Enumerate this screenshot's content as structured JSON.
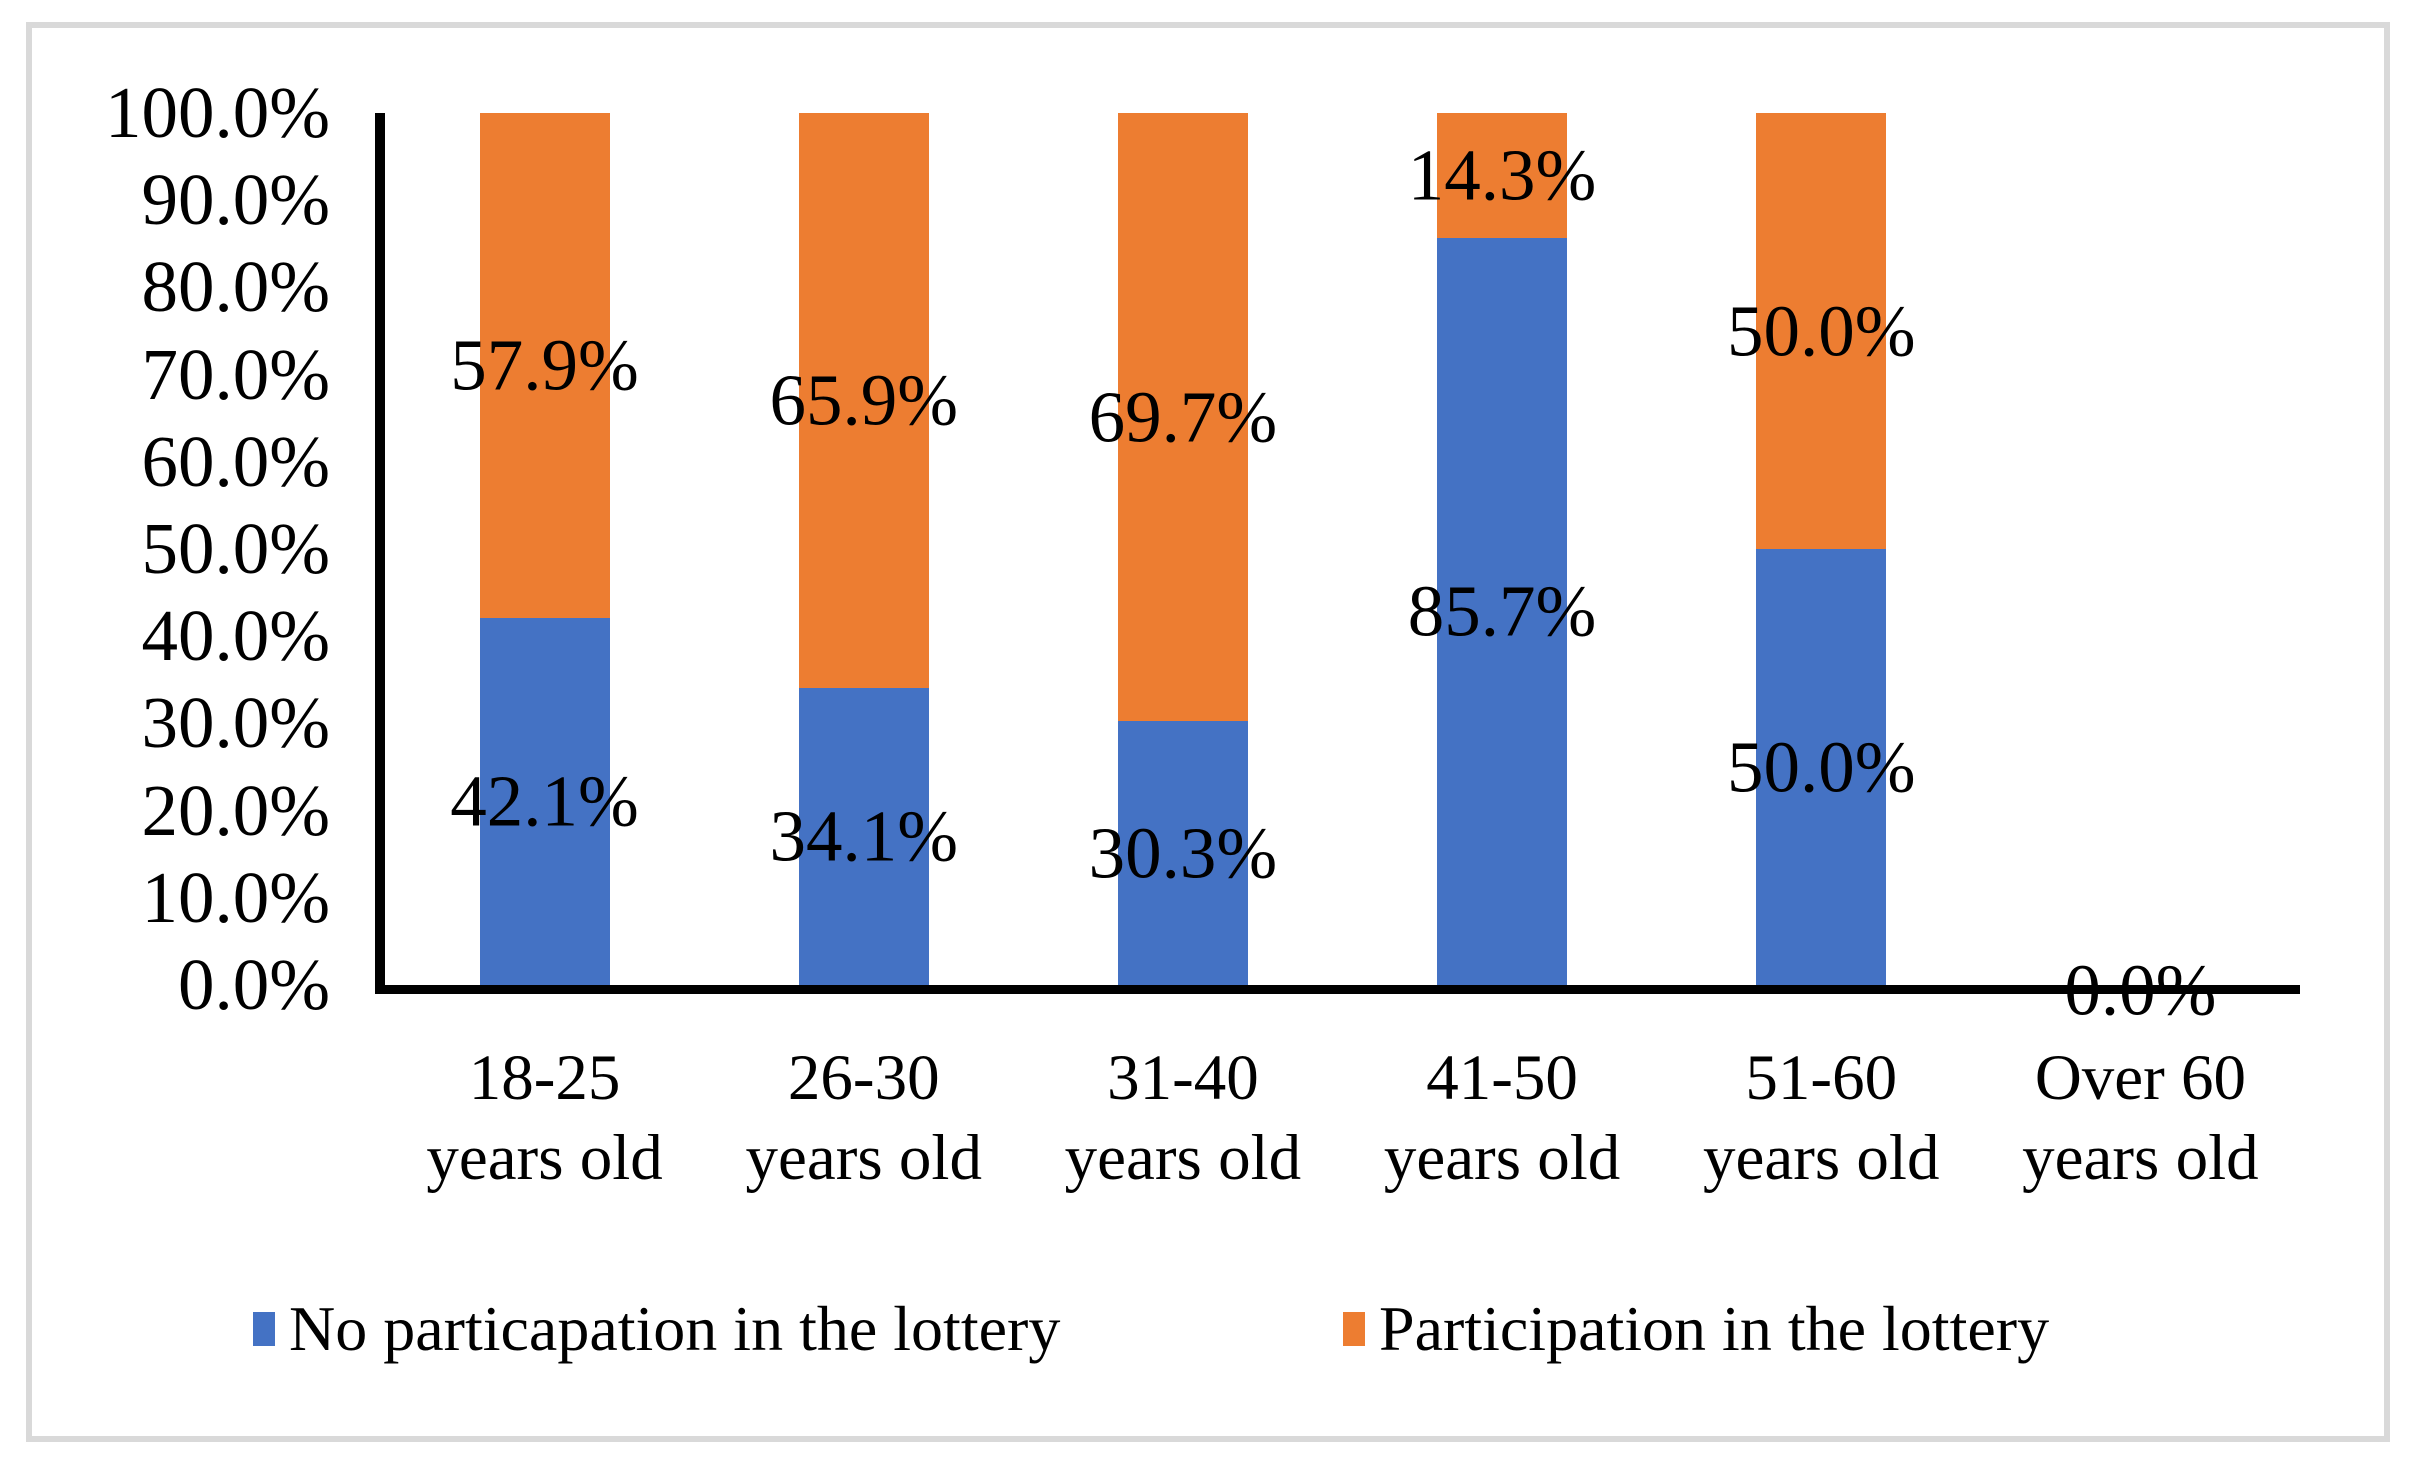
{
  "frame": {
    "border_color": "#D9D9D9",
    "background_color": "#FFFFFF"
  },
  "chart_data": {
    "type": "bar",
    "variant": "stacked-column-100-percent",
    "title": "",
    "xlabel": "",
    "ylabel": "",
    "grid": false,
    "axis_color": "#000000",
    "text_color": "#000000",
    "categories": [
      {
        "line1": "18-25",
        "line2": "years old"
      },
      {
        "line1": "26-30",
        "line2": "years old"
      },
      {
        "line1": "31-40",
        "line2": "years old"
      },
      {
        "line1": "41-50",
        "line2": "years old"
      },
      {
        "line1": "51-60",
        "line2": "years old"
      },
      {
        "line1": "Over 60",
        "line2": "years old"
      }
    ],
    "series": [
      {
        "name": "No particapation in the lottery",
        "color": "#4472C4",
        "values": [
          42.1,
          34.1,
          30.3,
          85.7,
          50.0,
          0.0
        ],
        "labels": [
          "42.1%",
          "34.1%",
          "30.3%",
          "85.7%",
          "50.0%",
          ""
        ]
      },
      {
        "name": "Participation in the lottery",
        "color": "#ED7D31",
        "values": [
          57.9,
          65.9,
          69.7,
          14.3,
          50.0,
          0.0
        ],
        "labels": [
          "57.9%",
          "65.9%",
          "69.7%",
          "14.3%",
          "50.0%",
          ""
        ]
      }
    ],
    "annotations": [
      {
        "text": "0.0%",
        "category_index": 5,
        "position": "baseline"
      }
    ],
    "y_axis": {
      "min": 0,
      "max": 100,
      "step": 10,
      "tick_labels": [
        "0.0%",
        "10.0%",
        "20.0%",
        "30.0%",
        "40.0%",
        "50.0%",
        "60.0%",
        "70.0%",
        "80.0%",
        "90.0%",
        "100.0%"
      ]
    },
    "legend": {
      "position": "bottom",
      "items": [
        {
          "label": "No particapation in the lottery",
          "color": "#4472C4"
        },
        {
          "label": "Participation in the lottery",
          "color": "#ED7D31"
        }
      ]
    }
  }
}
